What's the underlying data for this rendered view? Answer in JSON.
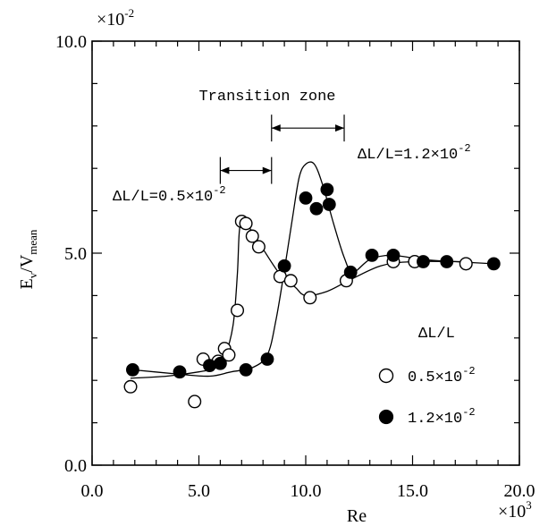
{
  "chart_data": {
    "type": "scatter",
    "xlabel": "Re",
    "ylabel": "E",
    "ylabel_sub1": "v",
    "ylabel_mid": "/V",
    "ylabel_sub2": "mean",
    "xlim": [
      0,
      20
    ],
    "ylim": [
      0,
      10
    ],
    "x_ticks": [
      "0.0",
      "5.0",
      "10.0",
      "15.0",
      "20.0"
    ],
    "y_ticks": [
      "0.0",
      "5.0",
      "10.0"
    ],
    "x_multiplier_base": "×10",
    "x_multiplier_exp": "3",
    "y_multiplier_base": "×10",
    "y_multiplier_exp": "-2",
    "legend_title": "ΔL/L",
    "series": [
      {
        "name": "0.5×10⁻²",
        "label_base": "0.5×10",
        "label_exp": "-2",
        "marker": "open-circle",
        "x": [
          1.8,
          4.8,
          5.2,
          5.9,
          6.2,
          6.4,
          6.8,
          7.0,
          7.2,
          7.5,
          7.8,
          8.8,
          9.3,
          10.2,
          11.9,
          14.1,
          15.1,
          17.5
        ],
        "y": [
          1.85,
          1.5,
          2.5,
          2.45,
          2.75,
          2.6,
          3.65,
          5.75,
          5.7,
          5.4,
          5.15,
          4.45,
          4.35,
          3.95,
          4.35,
          4.8,
          4.8,
          4.75
        ],
        "curve": [
          [
            1.8,
            2.05
          ],
          [
            3.5,
            2.1
          ],
          [
            5.0,
            2.2
          ],
          [
            5.8,
            2.3
          ],
          [
            6.2,
            2.55
          ],
          [
            6.6,
            3.3
          ],
          [
            6.8,
            4.5
          ],
          [
            6.9,
            5.55
          ],
          [
            7.1,
            5.75
          ],
          [
            7.5,
            5.5
          ],
          [
            8.0,
            5.1
          ],
          [
            8.8,
            4.5
          ],
          [
            9.5,
            4.2
          ],
          [
            10.0,
            4.0
          ],
          [
            11.0,
            4.1
          ],
          [
            12.0,
            4.35
          ],
          [
            13.5,
            4.7
          ],
          [
            15.0,
            4.8
          ],
          [
            17.5,
            4.8
          ]
        ]
      },
      {
        "name": "1.2×10⁻²",
        "label_base": "1.2×10",
        "label_exp": "-2",
        "marker": "filled-circle",
        "x": [
          1.9,
          4.1,
          5.5,
          6.0,
          7.2,
          8.2,
          9.0,
          10.0,
          10.5,
          11.0,
          11.1,
          12.1,
          13.1,
          14.1,
          15.5,
          16.6,
          18.8
        ],
        "y": [
          2.25,
          2.2,
          2.35,
          2.4,
          2.25,
          2.5,
          4.7,
          6.3,
          6.05,
          6.5,
          6.15,
          4.55,
          4.95,
          4.95,
          4.8,
          4.8,
          4.75
        ],
        "curve": [
          [
            1.9,
            2.25
          ],
          [
            4.0,
            2.15
          ],
          [
            5.5,
            2.1
          ],
          [
            6.5,
            2.2
          ],
          [
            7.5,
            2.3
          ],
          [
            8.2,
            2.6
          ],
          [
            8.6,
            3.4
          ],
          [
            9.0,
            4.6
          ],
          [
            9.4,
            5.9
          ],
          [
            9.7,
            6.8
          ],
          [
            10.0,
            7.1
          ],
          [
            10.4,
            7.1
          ],
          [
            10.8,
            6.6
          ],
          [
            11.3,
            5.7
          ],
          [
            11.8,
            4.9
          ],
          [
            12.2,
            4.55
          ],
          [
            13.0,
            4.85
          ],
          [
            14.0,
            4.95
          ],
          [
            15.5,
            4.85
          ],
          [
            17.0,
            4.8
          ],
          [
            18.8,
            4.75
          ]
        ]
      }
    ],
    "annotations": {
      "transition_zone": "Transition zone",
      "dl1_base": "ΔL/L=0.5×10",
      "dl1_exp": "-2",
      "dl1_x": [
        6.0,
        8.4
      ],
      "dl1_y": 6.95,
      "dl2_base": "ΔL/L=1.2×10",
      "dl2_exp": "-2",
      "dl2_x": [
        8.4,
        11.8
      ],
      "dl2_y": 7.95
    }
  }
}
